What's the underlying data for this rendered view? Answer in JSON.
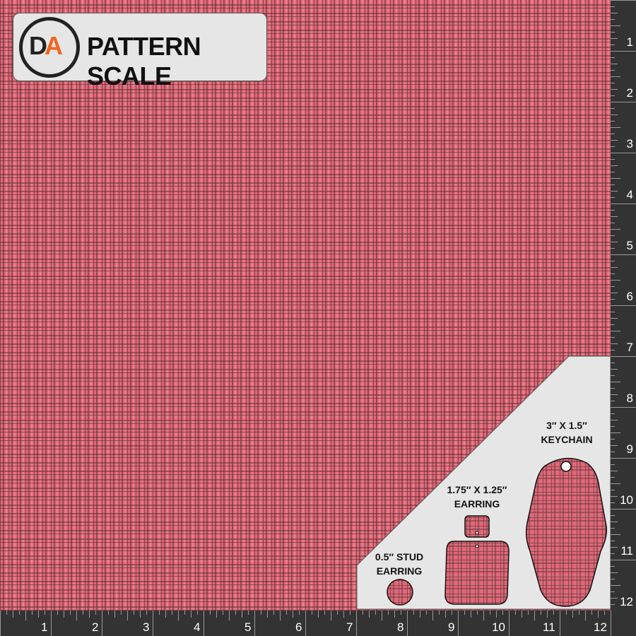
{
  "title": "PATTERN SCALE",
  "logo_text": "DA",
  "colors": {
    "plaid_base": "#e06878",
    "plaid_dark": "#462828",
    "accent": "#f26522",
    "ruler": "#333333",
    "panel": "#e6e6e6"
  },
  "ruler": {
    "right_labels": [
      "1",
      "2",
      "3",
      "4",
      "5",
      "6",
      "7",
      "8",
      "9",
      "10",
      "11",
      "12"
    ],
    "bottom_labels": [
      "1",
      "2",
      "3",
      "4",
      "5",
      "6",
      "7",
      "8",
      "9",
      "10",
      "11",
      "12"
    ]
  },
  "shapes": {
    "stud": "0.5″ STUD EARRING",
    "stud_l1": "0.5″ STUD",
    "stud_l2": "EARRING",
    "earring_l1": "1.75″ X 1.25″",
    "earring_l2": "EARRING",
    "keychain_l1": "3″ X 1.5″",
    "keychain_l2": "KEYCHAIN"
  }
}
